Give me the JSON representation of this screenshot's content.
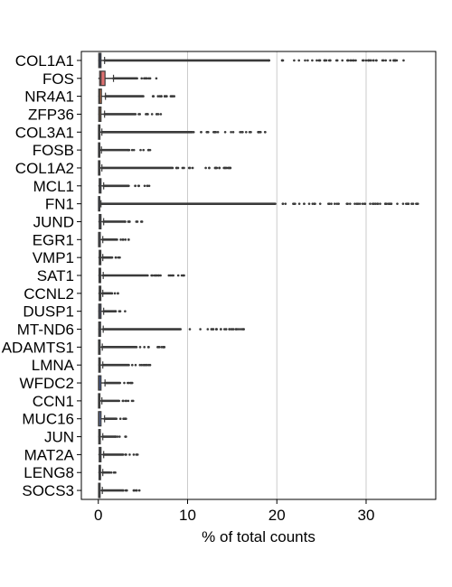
{
  "chart_data": {
    "type": "box",
    "orientation": "horizontal",
    "title": "",
    "xlabel": "% of total counts",
    "ylabel": "",
    "xlim": [
      -1.9,
      37.8
    ],
    "xticks": [
      "0",
      "10",
      "20",
      "30"
    ],
    "grid": "vertical",
    "legend": "none",
    "colors": {
      "COL1A1": "#1f3b8f",
      "FOS": "#e07070",
      "NR4A1": "#d8784a",
      "ZFP36": "#c48a4e",
      "COL3A1": "#4d6fb0",
      "FOSB": "#3c4fa0",
      "COL1A2": "#4a5aa8",
      "MCL1": "#5a6fb8",
      "FN1": "#4860b0",
      "JUND": "#6a7cc0",
      "EGR1": "#8090c8",
      "VMP1": "#5070b8",
      "SAT1": "#7080c0",
      "CCNL2": "#5a68b0",
      "DUSP1": "#6878c0",
      "MT-ND6": "#5570b5",
      "ADAMTS1": "#4d66b0",
      "LMNA": "#6070b8",
      "WFDC2": "#4f6ab5",
      "CCN1": "#7080c0",
      "MUC16": "#6f86c4",
      "JUN": "#7888c4",
      "MAT2A": "#5f75bb",
      "LENG8": "#6878c0",
      "SOCS3": "#5a72b8"
    },
    "genes": [
      {
        "name": "COL1A1",
        "min": 0,
        "q1": 0.05,
        "median": 0.15,
        "q3": 0.3,
        "whisker_hi": 0.7,
        "outlier_max": 34.2
      },
      {
        "name": "FOS",
        "min": 0,
        "q1": 0.15,
        "median": 0.3,
        "q3": 0.75,
        "whisker_hi": 1.7,
        "outlier_max": 6.5
      },
      {
        "name": "NR4A1",
        "min": 0,
        "q1": 0.05,
        "median": 0.15,
        "q3": 0.35,
        "whisker_hi": 0.8,
        "outlier_max": 8.5
      },
      {
        "name": "ZFP36",
        "min": 0,
        "q1": 0.05,
        "median": 0.15,
        "q3": 0.3,
        "whisker_hi": 0.7,
        "outlier_max": 7.0
      },
      {
        "name": "COL3A1",
        "min": 0,
        "q1": 0.02,
        "median": 0.08,
        "q3": 0.18,
        "whisker_hi": 0.4,
        "outlier_max": 18.7
      },
      {
        "name": "FOSB",
        "min": 0,
        "q1": 0.02,
        "median": 0.06,
        "q3": 0.15,
        "whisker_hi": 0.35,
        "outlier_max": 5.8
      },
      {
        "name": "COL1A2",
        "min": 0,
        "q1": 0.02,
        "median": 0.08,
        "q3": 0.18,
        "whisker_hi": 0.4,
        "outlier_max": 14.8
      },
      {
        "name": "MCL1",
        "min": 0,
        "q1": 0.1,
        "median": 0.2,
        "q3": 0.3,
        "whisker_hi": 0.6,
        "outlier_max": 5.7
      },
      {
        "name": "FN1",
        "min": 0,
        "q1": 0.02,
        "median": 0.05,
        "q3": 0.12,
        "whisker_hi": 0.3,
        "outlier_max": 35.8
      },
      {
        "name": "JUND",
        "min": 0,
        "q1": 0.1,
        "median": 0.2,
        "q3": 0.3,
        "whisker_hi": 0.6,
        "outlier_max": 4.9
      },
      {
        "name": "EGR1",
        "min": 0,
        "q1": 0.03,
        "median": 0.1,
        "q3": 0.22,
        "whisker_hi": 0.5,
        "outlier_max": 3.4
      },
      {
        "name": "VMP1",
        "min": 0,
        "q1": 0.1,
        "median": 0.18,
        "q3": 0.28,
        "whisker_hi": 0.5,
        "outlier_max": 2.4
      },
      {
        "name": "SAT1",
        "min": 0,
        "q1": 0.08,
        "median": 0.16,
        "q3": 0.26,
        "whisker_hi": 0.55,
        "outlier_max": 9.6
      },
      {
        "name": "CCNL2",
        "min": 0,
        "q1": 0.1,
        "median": 0.18,
        "q3": 0.28,
        "whisker_hi": 0.5,
        "outlier_max": 2.2
      },
      {
        "name": "DUSP1",
        "min": 0,
        "q1": 0.05,
        "median": 0.15,
        "q3": 0.3,
        "whisker_hi": 0.6,
        "outlier_max": 3.0
      },
      {
        "name": "MT-ND6",
        "min": 0,
        "q1": 0.05,
        "median": 0.12,
        "q3": 0.25,
        "whisker_hi": 0.55,
        "outlier_max": 16.3
      },
      {
        "name": "ADAMTS1",
        "min": 0,
        "q1": 0.03,
        "median": 0.1,
        "q3": 0.2,
        "whisker_hi": 0.45,
        "outlier_max": 7.4
      },
      {
        "name": "LMNA",
        "min": 0,
        "q1": 0.05,
        "median": 0.12,
        "q3": 0.22,
        "whisker_hi": 0.5,
        "outlier_max": 5.8
      },
      {
        "name": "WFDC2",
        "min": 0,
        "q1": 0.02,
        "median": 0.1,
        "q3": 0.3,
        "whisker_hi": 0.75,
        "outlier_max": 3.8
      },
      {
        "name": "CCN1",
        "min": 0,
        "q1": 0.02,
        "median": 0.08,
        "q3": 0.18,
        "whisker_hi": 0.4,
        "outlier_max": 3.9
      },
      {
        "name": "MUC16",
        "min": 0,
        "q1": 0.02,
        "median": 0.1,
        "q3": 0.3,
        "whisker_hi": 0.7,
        "outlier_max": 3.1
      },
      {
        "name": "JUN",
        "min": 0,
        "q1": 0.05,
        "median": 0.12,
        "q3": 0.22,
        "whisker_hi": 0.5,
        "outlier_max": 3.1
      },
      {
        "name": "MAT2A",
        "min": 0,
        "q1": 0.1,
        "median": 0.2,
        "q3": 0.3,
        "whisker_hi": 0.6,
        "outlier_max": 4.4
      },
      {
        "name": "LENG8",
        "min": 0,
        "q1": 0.08,
        "median": 0.15,
        "q3": 0.25,
        "whisker_hi": 0.5,
        "outlier_max": 1.9
      },
      {
        "name": "SOCS3",
        "min": 0,
        "q1": 0.03,
        "median": 0.1,
        "q3": 0.2,
        "whisker_hi": 0.45,
        "outlier_max": 4.6
      }
    ]
  }
}
